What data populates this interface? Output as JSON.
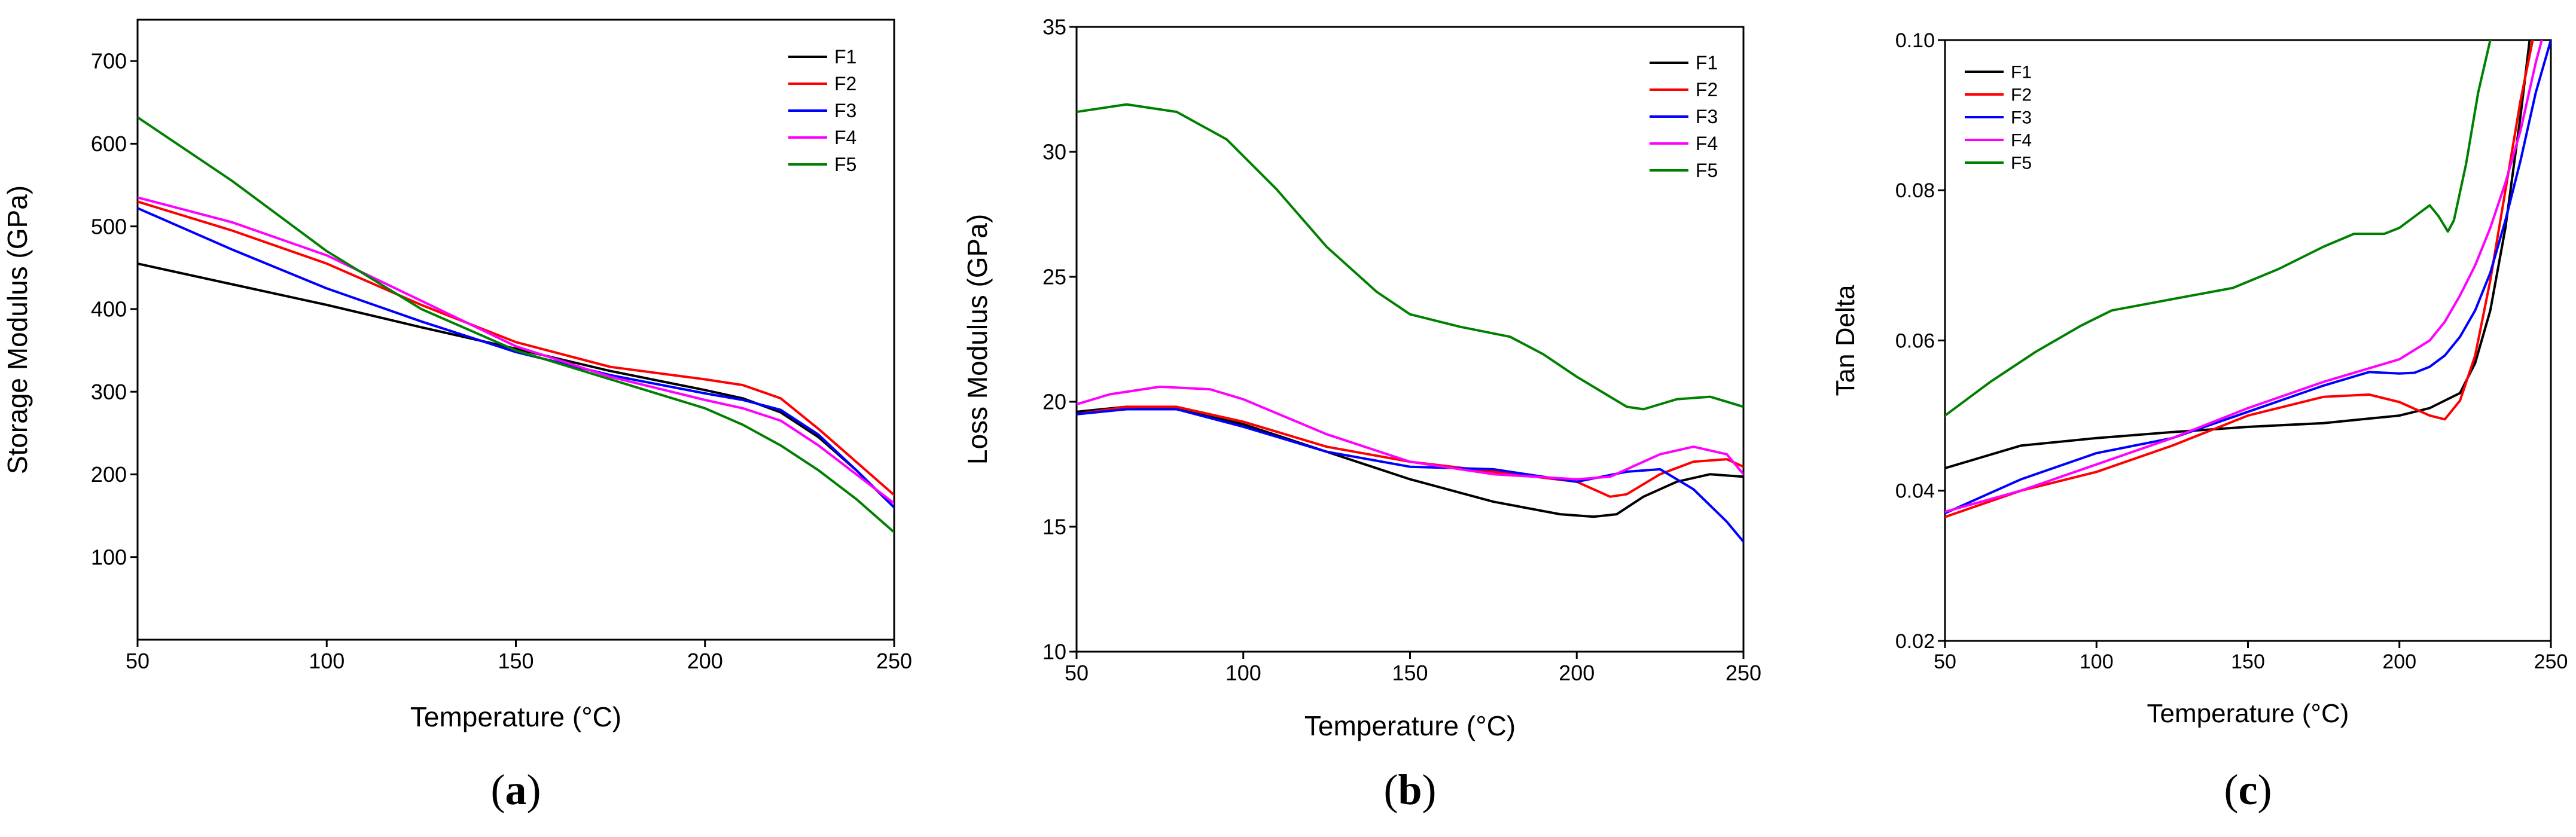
{
  "chart_data": [
    {
      "id": "a",
      "type": "line",
      "panel_label": "(a)",
      "title": "",
      "xlabel": "Temperature (°C)",
      "ylabel": "Storage Modulus (GPa)",
      "xlim": [
        50,
        250
      ],
      "ylim": [
        0,
        750
      ],
      "xticks": [
        50,
        100,
        150,
        200,
        250
      ],
      "yticks": [
        100,
        200,
        300,
        400,
        500,
        600,
        700
      ],
      "grid": false,
      "legend": "top-right",
      "series": [
        {
          "name": "F1",
          "color": "#000000",
          "x": [
            50,
            75,
            100,
            125,
            150,
            175,
            200,
            210,
            220,
            230,
            240,
            250
          ],
          "y": [
            455,
            430,
            405,
            378,
            352,
            325,
            302,
            292,
            275,
            245,
            205,
            160
          ]
        },
        {
          "name": "F2",
          "color": "#ff0000",
          "x": [
            50,
            75,
            100,
            125,
            150,
            175,
            200,
            210,
            220,
            230,
            240,
            250
          ],
          "y": [
            530,
            495,
            455,
            405,
            360,
            330,
            315,
            308,
            292,
            255,
            215,
            175
          ]
        },
        {
          "name": "F3",
          "color": "#0000ff",
          "x": [
            50,
            75,
            100,
            125,
            150,
            175,
            200,
            210,
            220,
            230,
            240,
            250
          ],
          "y": [
            522,
            472,
            425,
            385,
            348,
            320,
            298,
            290,
            278,
            248,
            205,
            160
          ]
        },
        {
          "name": "F4",
          "color": "#ff00ff",
          "x": [
            50,
            75,
            100,
            125,
            150,
            175,
            200,
            210,
            220,
            230,
            240,
            250
          ],
          "y": [
            535,
            505,
            465,
            410,
            355,
            318,
            290,
            280,
            265,
            235,
            200,
            165
          ]
        },
        {
          "name": "F5",
          "color": "#008000",
          "x": [
            50,
            75,
            100,
            125,
            150,
            175,
            200,
            210,
            220,
            230,
            240,
            250
          ],
          "y": [
            632,
            555,
            470,
            400,
            350,
            315,
            280,
            260,
            235,
            205,
            170,
            130
          ]
        }
      ]
    },
    {
      "id": "b",
      "type": "line",
      "panel_label": "(b)",
      "title": "",
      "xlabel": "Temperature (°C)",
      "ylabel": "Loss Modulus (GPa)",
      "xlim": [
        50,
        250
      ],
      "ylim": [
        10,
        35
      ],
      "xticks": [
        50,
        100,
        150,
        200,
        250
      ],
      "yticks": [
        10,
        15,
        20,
        25,
        30,
        35
      ],
      "grid": false,
      "legend": "top-right",
      "series": [
        {
          "name": "F1",
          "color": "#000000",
          "x": [
            50,
            65,
            80,
            100,
            125,
            150,
            175,
            195,
            205,
            212,
            220,
            230,
            240,
            250
          ],
          "y": [
            19.6,
            19.8,
            19.7,
            19.1,
            18.0,
            16.9,
            16.0,
            15.5,
            15.4,
            15.5,
            16.2,
            16.8,
            17.1,
            17.0
          ]
        },
        {
          "name": "F2",
          "color": "#ff0000",
          "x": [
            50,
            65,
            80,
            100,
            125,
            150,
            175,
            200,
            210,
            215,
            225,
            235,
            245,
            250
          ],
          "y": [
            19.5,
            19.8,
            19.8,
            19.2,
            18.2,
            17.6,
            17.2,
            16.8,
            16.2,
            16.3,
            17.1,
            17.6,
            17.7,
            17.4
          ]
        },
        {
          "name": "F3",
          "color": "#0000ff",
          "x": [
            50,
            65,
            80,
            100,
            125,
            150,
            175,
            200,
            215,
            225,
            235,
            245,
            250
          ],
          "y": [
            19.5,
            19.7,
            19.7,
            19.0,
            18.0,
            17.4,
            17.3,
            16.8,
            17.2,
            17.3,
            16.5,
            15.2,
            14.4
          ]
        },
        {
          "name": "F4",
          "color": "#ff00ff",
          "x": [
            50,
            60,
            75,
            90,
            100,
            125,
            150,
            175,
            200,
            210,
            225,
            235,
            245,
            250
          ],
          "y": [
            19.9,
            20.3,
            20.6,
            20.5,
            20.1,
            18.7,
            17.6,
            17.1,
            16.9,
            17.0,
            17.9,
            18.2,
            17.9,
            17.1
          ]
        },
        {
          "name": "F5",
          "color": "#008000",
          "x": [
            50,
            65,
            80,
            95,
            110,
            125,
            140,
            150,
            165,
            180,
            190,
            200,
            210,
            215,
            220,
            230,
            240,
            250
          ],
          "y": [
            31.6,
            31.9,
            31.6,
            30.5,
            28.5,
            26.2,
            24.4,
            23.5,
            23.0,
            22.6,
            21.9,
            21.0,
            20.2,
            19.8,
            19.7,
            20.1,
            20.2,
            19.8
          ]
        }
      ]
    },
    {
      "id": "c",
      "type": "line",
      "panel_label": "(c)",
      "title": "",
      "xlabel": "Temperature (°C)",
      "ylabel": "Tan Delta",
      "xlim": [
        50,
        250
      ],
      "ylim": [
        0.02,
        0.1
      ],
      "xticks": [
        50,
        100,
        150,
        200,
        250
      ],
      "yticks": [
        0.02,
        0.04,
        0.06,
        0.08,
        0.1
      ],
      "ytick_labels": [
        "0.02",
        "0.04",
        "0.06",
        "0.08",
        "0.10"
      ],
      "grid": false,
      "legend": "top-left",
      "series": [
        {
          "name": "F1",
          "color": "#000000",
          "x": [
            50,
            75,
            100,
            125,
            150,
            175,
            200,
            210,
            215,
            220,
            225,
            230,
            235,
            240,
            243
          ],
          "y": [
            0.043,
            0.046,
            0.047,
            0.0478,
            0.0485,
            0.049,
            0.05,
            0.051,
            0.052,
            0.053,
            0.057,
            0.064,
            0.075,
            0.09,
            0.1
          ]
        },
        {
          "name": "F2",
          "color": "#ff0000",
          "x": [
            50,
            75,
            100,
            125,
            150,
            175,
            190,
            200,
            210,
            215,
            220,
            225,
            230,
            235,
            240,
            244
          ],
          "y": [
            0.0365,
            0.04,
            0.0425,
            0.046,
            0.05,
            0.0525,
            0.0528,
            0.0518,
            0.05,
            0.0495,
            0.052,
            0.058,
            0.068,
            0.08,
            0.092,
            0.1
          ]
        },
        {
          "name": "F3",
          "color": "#0000ff",
          "x": [
            50,
            75,
            100,
            125,
            150,
            175,
            190,
            200,
            205,
            210,
            215,
            220,
            225,
            230,
            235,
            240,
            245,
            250
          ],
          "y": [
            0.037,
            0.0415,
            0.045,
            0.047,
            0.0505,
            0.054,
            0.0558,
            0.0556,
            0.0557,
            0.0565,
            0.058,
            0.0605,
            0.064,
            0.069,
            0.076,
            0.084,
            0.093,
            0.1
          ]
        },
        {
          "name": "F4",
          "color": "#ff00ff",
          "x": [
            50,
            75,
            100,
            125,
            150,
            175,
            200,
            210,
            215,
            220,
            225,
            230,
            235,
            240,
            245,
            247
          ],
          "y": [
            0.0372,
            0.04,
            0.0435,
            0.047,
            0.051,
            0.0545,
            0.0575,
            0.06,
            0.0625,
            0.066,
            0.07,
            0.075,
            0.081,
            0.088,
            0.097,
            0.1
          ]
        },
        {
          "name": "F5",
          "color": "#008000",
          "x": [
            50,
            65,
            80,
            95,
            105,
            125,
            145,
            160,
            175,
            185,
            195,
            200,
            205,
            210,
            213,
            216,
            218,
            222,
            226,
            230
          ],
          "y": [
            0.05,
            0.0545,
            0.0585,
            0.062,
            0.064,
            0.0655,
            0.067,
            0.0695,
            0.0725,
            0.0742,
            0.0742,
            0.075,
            0.0765,
            0.078,
            0.0765,
            0.0745,
            0.076,
            0.0835,
            0.093,
            0.1
          ]
        }
      ]
    }
  ]
}
